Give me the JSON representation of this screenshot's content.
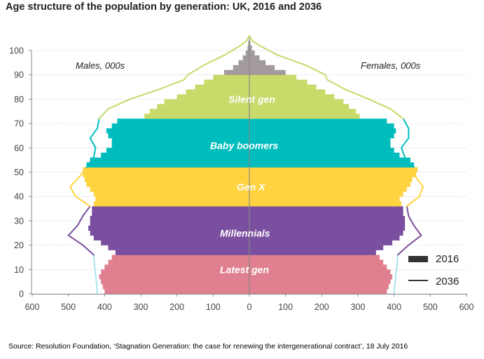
{
  "chart_data": {
    "type": "population-pyramid",
    "title": "Age structure of the population  by generation: UK, 2016 and 2036",
    "source": "Source: Resolution Foundation, ‘Stagnation Generation: the case for renewing the intergenerational contract’, 18 July 2016",
    "left_label": "Males, 000s",
    "right_label": "Females, 000s",
    "x_ticks": [
      "600",
      "500",
      "400",
      "300",
      "200",
      "100",
      "0",
      "100",
      "200",
      "300",
      "400",
      "500",
      "600"
    ],
    "y_ticks": [
      0,
      10,
      20,
      30,
      40,
      50,
      60,
      70,
      80,
      90,
      100
    ],
    "xlim": [
      -600,
      600
    ],
    "ylim": [
      0,
      105
    ],
    "legend": [
      {
        "label": "2016",
        "style": "bar"
      },
      {
        "label": "2036",
        "style": "line"
      }
    ],
    "generations": [
      {
        "name": "Latest gen",
        "age_from": 0,
        "age_to": 16,
        "color": "#e07f90",
        "label_age": 10
      },
      {
        "name": "Millennials",
        "age_from": 16,
        "age_to": 36,
        "color": "#7a4f9f",
        "label_age": 25
      },
      {
        "name": "Gen X",
        "age_from": 36,
        "age_to": 51,
        "color": "#ffd23f",
        "label_age": 44
      },
      {
        "name": "Baby boomers",
        "age_from": 51,
        "age_to": 71,
        "color": "#00bdbd",
        "label_age": 61
      },
      {
        "name": "Silent gen",
        "age_from": 71,
        "age_to": 90,
        "color": "#c8da6a",
        "label_age": 80
      },
      {
        "name": "",
        "age_from": 90,
        "age_to": 106,
        "color": "#a39a9e",
        "label_age": null
      }
    ],
    "pyramid_2016": {
      "ages": [
        0,
        2,
        4,
        6,
        8,
        10,
        12,
        14,
        16,
        18,
        20,
        22,
        24,
        26,
        28,
        30,
        32,
        34,
        36,
        38,
        40,
        42,
        44,
        46,
        48,
        50,
        52,
        54,
        56,
        58,
        60,
        62,
        64,
        66,
        68,
        70,
        72,
        74,
        76,
        78,
        80,
        82,
        84,
        86,
        88,
        90,
        92,
        94,
        96,
        98,
        100,
        102,
        104,
        106
      ],
      "male": [
        400,
        405,
        410,
        415,
        410,
        400,
        390,
        380,
        370,
        390,
        410,
        430,
        440,
        445,
        440,
        440,
        435,
        435,
        430,
        425,
        430,
        440,
        450,
        455,
        460,
        460,
        450,
        440,
        410,
        395,
        380,
        380,
        390,
        395,
        380,
        365,
        290,
        275,
        255,
        235,
        200,
        175,
        150,
        125,
        100,
        70,
        45,
        30,
        18,
        10,
        5,
        3,
        1,
        0
      ],
      "female": [
        380,
        385,
        390,
        395,
        390,
        380,
        370,
        360,
        350,
        370,
        395,
        415,
        425,
        430,
        430,
        430,
        425,
        425,
        420,
        415,
        425,
        435,
        445,
        450,
        460,
        465,
        455,
        445,
        415,
        400,
        390,
        390,
        400,
        405,
        400,
        380,
        305,
        295,
        275,
        260,
        235,
        210,
        185,
        160,
        130,
        100,
        70,
        45,
        28,
        15,
        7,
        3,
        1,
        0
      ]
    },
    "lines_2036": {
      "ages": [
        0,
        4,
        8,
        12,
        16,
        20,
        24,
        28,
        32,
        36,
        40,
        44,
        48,
        52,
        56,
        60,
        64,
        68,
        72,
        76,
        80,
        84,
        88,
        90,
        94,
        98,
        102,
        104,
        106
      ],
      "male": [
        420,
        422,
        425,
        428,
        430,
        460,
        500,
        475,
        460,
        440,
        480,
        495,
        470,
        450,
        430,
        425,
        440,
        420,
        415,
        390,
        330,
        250,
        180,
        170,
        125,
        70,
        25,
        8,
        0
      ],
      "female": [
        400,
        402,
        405,
        408,
        410,
        440,
        475,
        455,
        440,
        435,
        470,
        480,
        460,
        455,
        430,
        420,
        440,
        440,
        425,
        390,
        330,
        265,
        215,
        210,
        155,
        80,
        28,
        8,
        0
      ]
    }
  }
}
